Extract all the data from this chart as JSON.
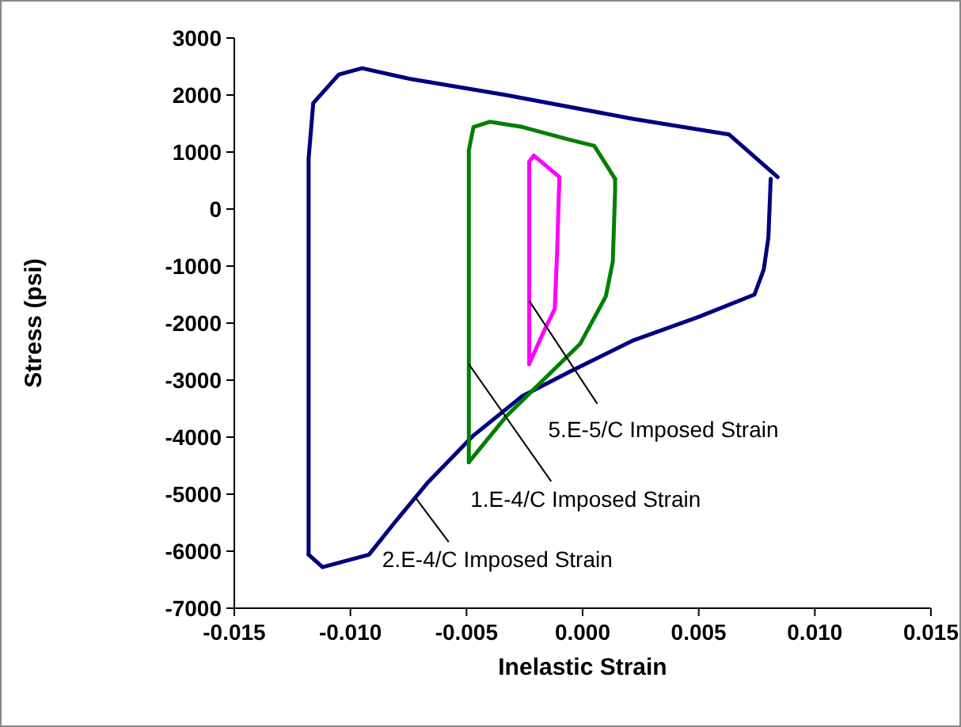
{
  "chart_data": {
    "type": "line",
    "xlabel": "Inelastic Strain",
    "ylabel": "Stress (psi)",
    "xlim": [
      -0.015,
      0.015
    ],
    "xticks": [
      {
        "value": -0.015,
        "label": "-0.015"
      },
      {
        "value": -0.01,
        "label": "-0.010"
      },
      {
        "value": -0.005,
        "label": "-0.005"
      },
      {
        "value": 0,
        "label": "0.000"
      },
      {
        "value": 0.005,
        "label": "0.005"
      },
      {
        "value": 0.01,
        "label": "0.010"
      },
      {
        "value": 0.015,
        "label": "0.015"
      }
    ],
    "ylim": [
      -7000,
      3000
    ],
    "yticks": [
      -7000,
      -6000,
      -5000,
      -4000,
      -3000,
      -2000,
      -1000,
      0,
      1000,
      2000,
      3000
    ],
    "grid": false,
    "marker": "none",
    "line_style": "solid",
    "series": [
      {
        "color": "#000080",
        "x": [
          -0.0118,
          -0.0112,
          -0.0092,
          -0.0081,
          -0.0067,
          -0.0047,
          -0.0026,
          -0.0006,
          0.0022,
          0.005,
          0.0074,
          0.0078,
          0.008,
          0.0081
        ],
        "values": [
          -6060,
          -6280,
          -6060,
          -5500,
          -4810,
          -3970,
          -3280,
          -2860,
          -2300,
          -1890,
          -1500,
          -1060,
          -500,
          530
        ]
      },
      {
        "color": "#000080",
        "x": [
          -0.0118,
          -0.0118,
          -0.0116,
          -0.0105,
          -0.0095,
          -0.0074,
          -0.0033,
          0.0022,
          0.0063,
          0.0084
        ],
        "values": [
          -6060,
          890,
          1860,
          2360,
          2470,
          2280,
          2000,
          1580,
          1310,
          560
        ]
      },
      {
        "color": "#008000",
        "x": [
          -0.0049,
          -0.0033,
          -0.0019,
          -0.0001,
          0.001,
          0.0013,
          0.0014,
          0.0014
        ],
        "values": [
          -4440,
          -3640,
          -3080,
          -2360,
          -1530,
          -920,
          330,
          530
        ]
      },
      {
        "color": "#008000",
        "x": [
          -0.0049,
          -0.0049,
          -0.0047,
          -0.004,
          -0.0026,
          -0.0006,
          0.0005,
          0.0014
        ],
        "values": [
          -4440,
          1030,
          1440,
          1530,
          1440,
          1220,
          1110,
          530
        ]
      },
      {
        "color": "#ff00ff",
        "x": [
          -0.0023,
          -0.0017,
          -0.0012,
          -0.0011,
          -0.001
        ],
        "values": [
          -2720,
          -2170,
          -1750,
          -780,
          560
        ]
      },
      {
        "color": "#ff00ff",
        "x": [
          -0.0023,
          -0.0023,
          -0.0021,
          -0.001
        ],
        "values": [
          -2720,
          830,
          940,
          560
        ]
      }
    ],
    "annotations": [
      {
        "text": "5.E-5/C Imposed Strain",
        "x": -0.0023,
        "y": -1610
      },
      {
        "text": "1.E-4/C Imposed Strain",
        "x": -0.0049,
        "y": -2720
      },
      {
        "text": "2.E-4/C Imposed Strain",
        "x": -0.0072,
        "y": -5060
      }
    ]
  }
}
